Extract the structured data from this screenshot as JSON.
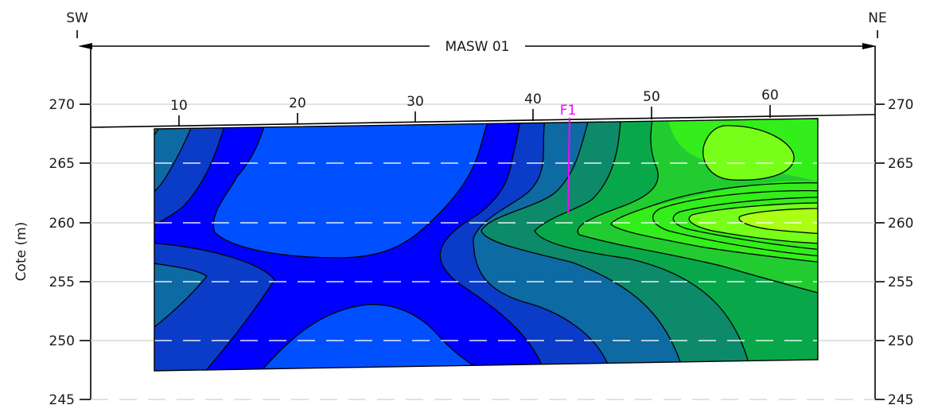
{
  "profile": {
    "left_direction": "SW",
    "right_direction": "NE",
    "title": "MASW 01"
  },
  "axes": {
    "y_label": "Cote (m)",
    "y_ticks": [
      "245",
      "250",
      "255",
      "260",
      "265",
      "270"
    ],
    "x_ticks": [
      "10",
      "20",
      "30",
      "40",
      "50",
      "60"
    ]
  },
  "fault": {
    "label": "F1",
    "color": "#ff00ff"
  },
  "colors": {
    "band_1": "#0000ff",
    "band_2": "#0050ff",
    "band_3": "#0a3cc8",
    "band_4": "#0e6aa2",
    "band_5": "#0c8a6a",
    "band_6": "#08a84a",
    "band_7": "#22cc30",
    "band_8": "#33ee1a",
    "band_9": "#77ff1a",
    "band_10": "#aaff14",
    "grid": "#d9d9d9"
  }
}
